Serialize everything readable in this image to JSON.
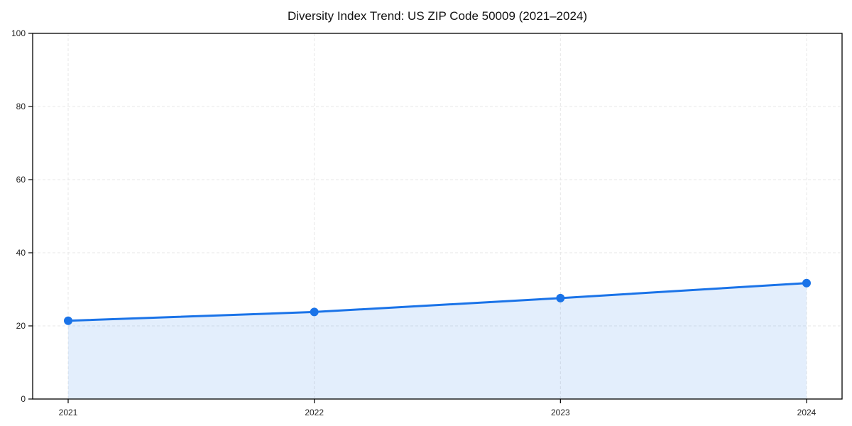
{
  "chart_data": {
    "type": "line",
    "title": "Diversity Index Trend: US ZIP Code 50009 (2021–2024)",
    "categories": [
      "2021",
      "2022",
      "2023",
      "2024"
    ],
    "values": [
      21.4,
      23.8,
      27.6,
      31.7
    ],
    "xlabel": "",
    "ylabel": "",
    "ylim": [
      0,
      100
    ],
    "yticks": [
      0,
      20,
      40,
      60,
      80,
      100
    ],
    "grid": "dashed-light",
    "legend": "none",
    "area_fill": true,
    "marker": "circle",
    "colors": {
      "line": "#1a73e8",
      "marker_fill": "#1a73e8",
      "area": "rgba(26,115,232,0.12)",
      "grid": "#e7e7e7",
      "axis": "#000000",
      "text": "#1f1f1f",
      "background": "#ffffff"
    }
  }
}
